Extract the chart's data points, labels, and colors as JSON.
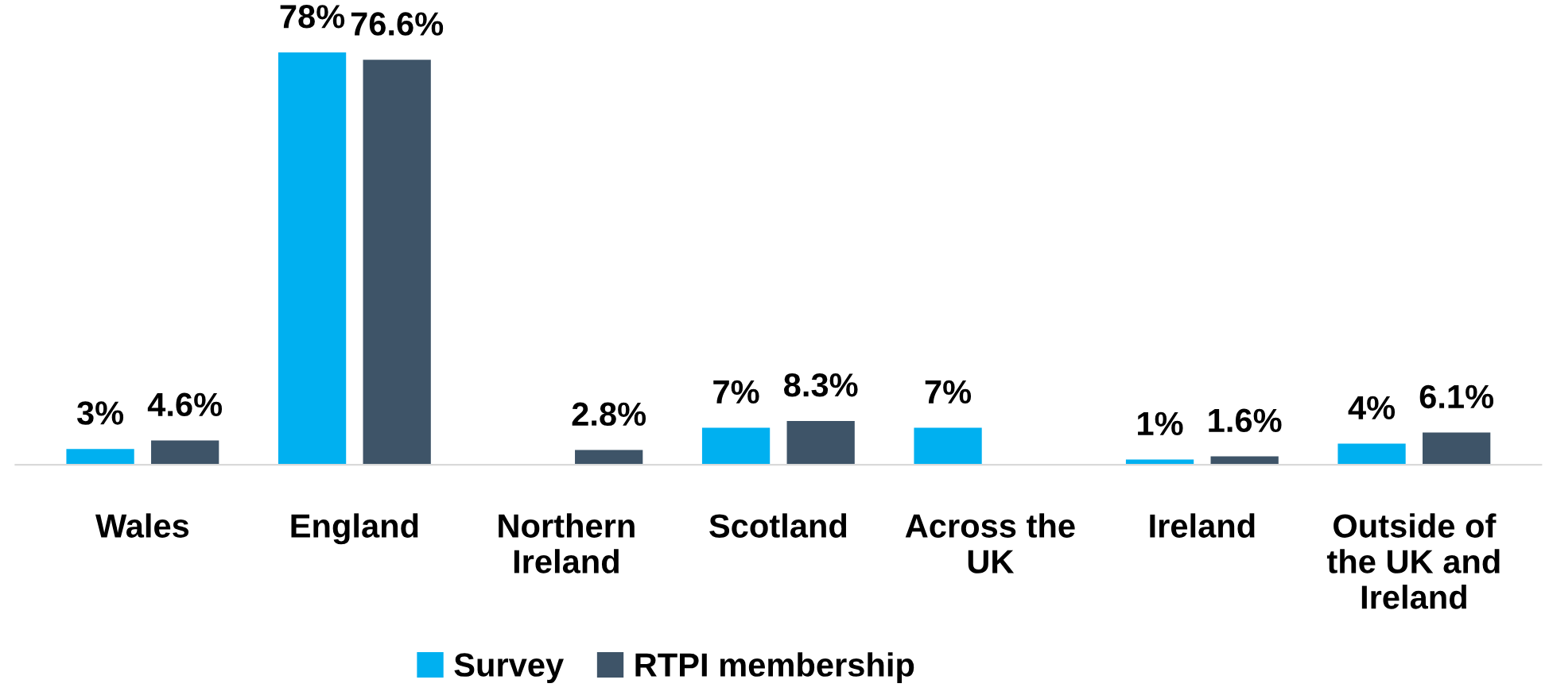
{
  "chart_data": {
    "type": "bar",
    "categories": [
      "Wales",
      "England",
      "Northern Ireland",
      "Scotland",
      "Across the UK",
      "Ireland",
      "Outside of the UK and Ireland"
    ],
    "series": [
      {
        "name": "Survey",
        "color": "#00b0f0",
        "values": [
          3,
          78,
          null,
          7,
          7,
          1,
          4
        ],
        "value_labels": [
          "3%",
          "78%",
          null,
          "7%",
          "7%",
          "1%",
          "4%"
        ]
      },
      {
        "name": "RTPI membership",
        "color": "#3e5468",
        "values": [
          4.6,
          76.6,
          2.8,
          8.3,
          null,
          1.6,
          6.1
        ],
        "value_labels": [
          "4.6%",
          "76.6%",
          "2.8%",
          "8.3%",
          null,
          "1.6%",
          "6.1%"
        ]
      }
    ],
    "legend": "bottom",
    "grid": false
  }
}
